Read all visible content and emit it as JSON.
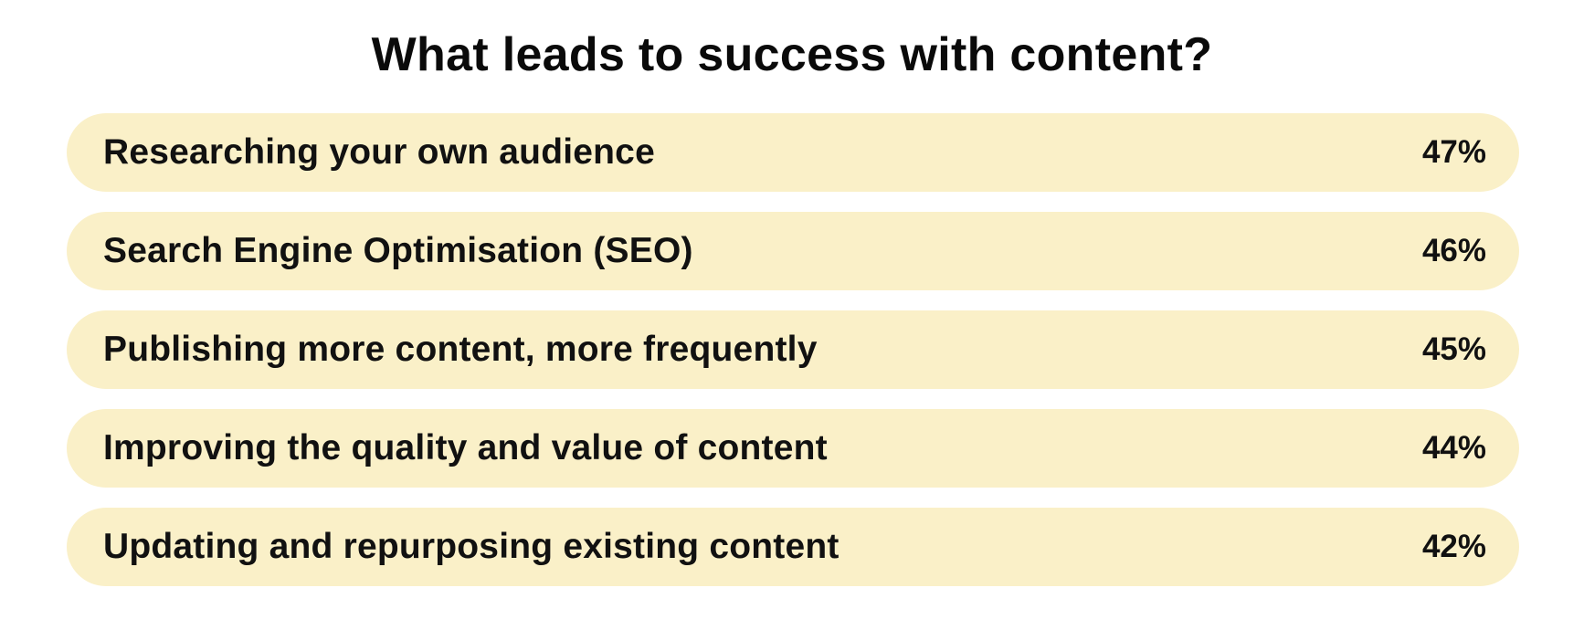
{
  "title": "What leads to success with content?",
  "colors": {
    "bar": "#FAF0C8",
    "text": "#111111",
    "background": "#FFFFFF"
  },
  "chart_data": {
    "type": "bar",
    "orientation": "horizontal",
    "title": "What leads to success with content?",
    "categories": [
      "Researching your own audience",
      "Search Engine Optimisation (SEO)",
      "Publishing more content, more frequently",
      "Improving the quality and value of content",
      "Updating and repurposing existing content"
    ],
    "values": [
      47,
      46,
      45,
      44,
      42
    ],
    "value_labels": [
      "47%",
      "46%",
      "45%",
      "44%",
      "42%"
    ],
    "xlabel": "",
    "ylabel": "",
    "grid": false,
    "legend": null
  },
  "bars": [
    {
      "label": "Researching your own audience",
      "value": "47%"
    },
    {
      "label": "Search Engine Optimisation (SEO)",
      "value": "46%"
    },
    {
      "label": "Publishing more content, more frequently",
      "value": "45%"
    },
    {
      "label": "Improving the quality and value of content",
      "value": "44%"
    },
    {
      "label": "Updating and repurposing existing content",
      "value": "42%"
    }
  ]
}
